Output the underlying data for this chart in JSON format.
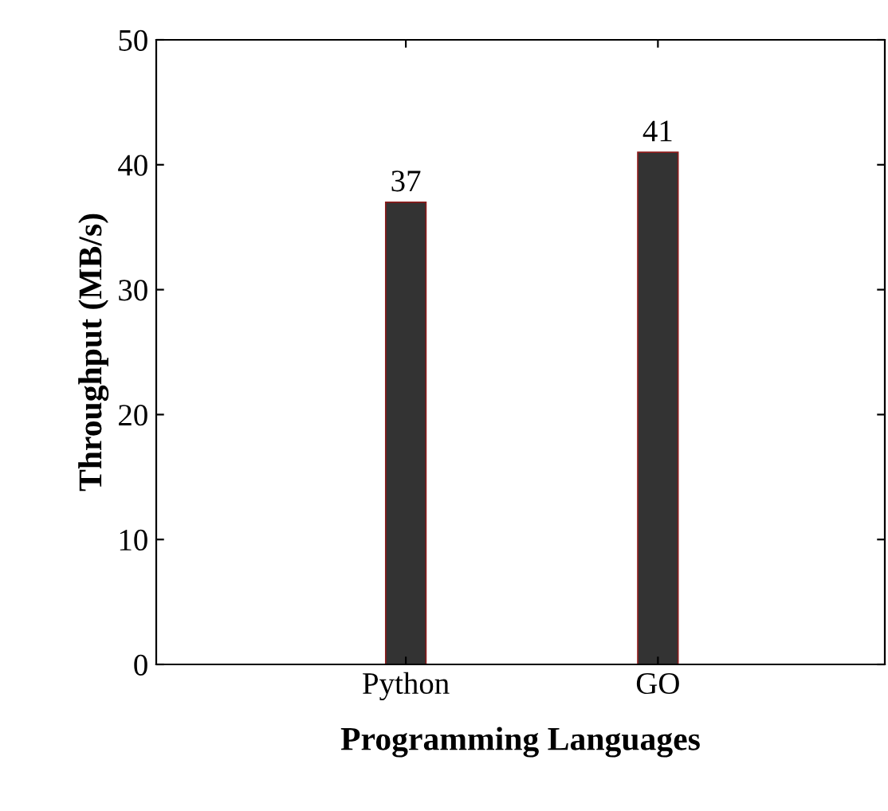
{
  "chart_data": {
    "type": "bar",
    "categories": [
      "Python",
      "GO"
    ],
    "values": [
      37,
      41
    ],
    "color": "#333333",
    "xlabel": "Programming Languages",
    "ylabel": "Throughput (MB/s)",
    "ylim": [
      0,
      50
    ],
    "yticks": [
      0,
      10,
      20,
      30,
      40,
      50
    ],
    "data_labels": true,
    "grid": false
  }
}
